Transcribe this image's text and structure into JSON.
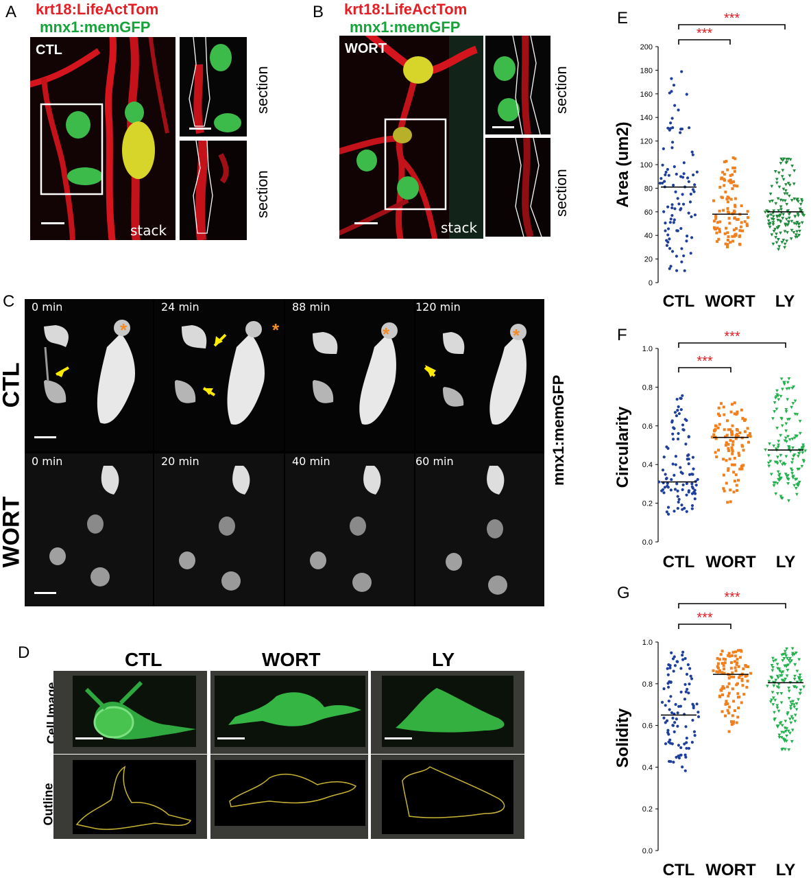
{
  "panelA": {
    "letter": "A",
    "title_line1": "krt18:LifeActTom",
    "title_line2": "mnx1:memGFP",
    "condition": "CTL",
    "stack_label": "stack",
    "section_label_1": "section",
    "section_label_2": "section"
  },
  "panelB": {
    "letter": "B",
    "title_line1": "krt18:LifeActTom",
    "title_line2": "mnx1:memGFP",
    "condition": "WORT",
    "stack_label": "stack",
    "section_label_1": "section",
    "section_label_2": "section"
  },
  "panelC": {
    "letter": "C",
    "side_label": "mnx1:memGFP",
    "rows": [
      {
        "condition": "CTL",
        "times": [
          "0 min",
          "24 min",
          "88 min",
          "120 min"
        ]
      },
      {
        "condition": "WORT",
        "times": [
          "0 min",
          "20 min",
          "40 min",
          "60 min"
        ]
      }
    ],
    "marker": "*"
  },
  "panelD": {
    "letter": "D",
    "columns": [
      "CTL",
      "WORT",
      "LY"
    ],
    "row_labels": [
      "Cell Image",
      "Outline"
    ]
  },
  "chart_data": [
    {
      "panel": "E",
      "type": "scatter",
      "ylabel": "Area (um2)",
      "categories": [
        "CTL",
        "WORT",
        "LY"
      ],
      "ylim": [
        0,
        200
      ],
      "yticks": [
        0,
        20,
        40,
        60,
        80,
        100,
        120,
        140,
        160,
        180,
        200
      ],
      "medians": [
        81,
        58,
        60
      ],
      "ranges": [
        [
          8,
          180
        ],
        [
          30,
          106
        ],
        [
          28,
          105
        ]
      ],
      "colors": [
        "#1f3f9c",
        "#f07f1e",
        "#1f8a3c"
      ],
      "significance": [
        {
          "pair": [
            "CTL",
            "WORT"
          ],
          "label": "***"
        },
        {
          "pair": [
            "CTL",
            "LY"
          ],
          "label": "***"
        }
      ]
    },
    {
      "panel": "F",
      "type": "scatter",
      "ylabel": "Circularity",
      "categories": [
        "CTL",
        "WORT",
        "LY"
      ],
      "ylim": [
        0,
        1.0
      ],
      "yticks": [
        0.0,
        0.2,
        0.4,
        0.6,
        0.8,
        1.0
      ],
      "medians": [
        0.31,
        0.54,
        0.475
      ],
      "ranges": [
        [
          0.13,
          0.77
        ],
        [
          0.2,
          0.72
        ],
        [
          0.2,
          0.85
        ]
      ],
      "colors": [
        "#1f3f9c",
        "#f07f1e",
        "#22b14c"
      ],
      "significance": [
        {
          "pair": [
            "CTL",
            "WORT"
          ],
          "label": "***"
        },
        {
          "pair": [
            "CTL",
            "LY"
          ],
          "label": "***"
        }
      ]
    },
    {
      "panel": "G",
      "type": "scatter",
      "ylabel": "Solidity",
      "categories": [
        "CTL",
        "WORT",
        "LY"
      ],
      "ylim": [
        0,
        1.0
      ],
      "yticks": [
        0.0,
        0.2,
        0.4,
        0.6,
        0.8,
        1.0
      ],
      "medians": [
        0.65,
        0.845,
        0.805
      ],
      "ranges": [
        [
          0.37,
          0.96
        ],
        [
          0.57,
          0.97
        ],
        [
          0.48,
          0.97
        ]
      ],
      "colors": [
        "#1f3f9c",
        "#f07f1e",
        "#22b14c"
      ],
      "significance": [
        {
          "pair": [
            "CTL",
            "WORT"
          ],
          "label": "***"
        },
        {
          "pair": [
            "CTL",
            "LY"
          ],
          "label": "***"
        }
      ]
    }
  ]
}
